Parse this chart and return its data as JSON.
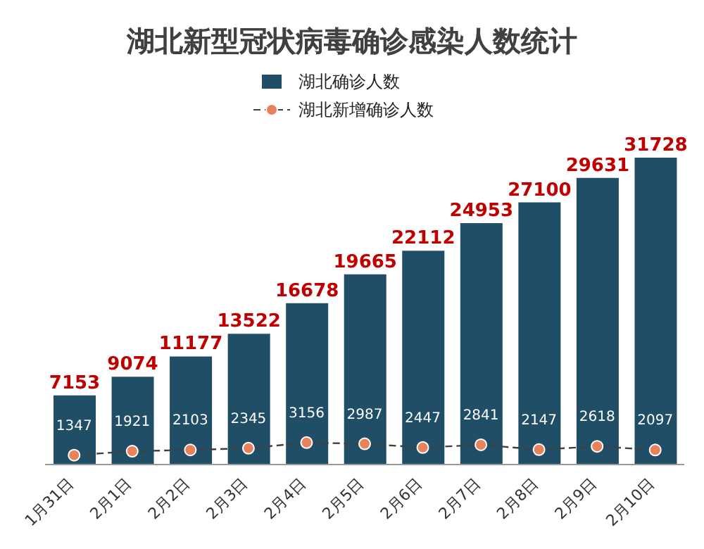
{
  "chart_data": {
    "type": "bar",
    "title": "湖北新型冠状病毒确诊感染人数统计",
    "categories": [
      "1月31日",
      "2月1日",
      "2月2日",
      "2月3日",
      "2月4日",
      "2月5日",
      "2月6日",
      "2月7日",
      "2月8日",
      "2月9日",
      "2月10日"
    ],
    "series": [
      {
        "name": "湖北确诊人数",
        "color": "#1f4e66",
        "values": [
          7153,
          9074,
          11177,
          13522,
          16678,
          19665,
          22112,
          24953,
          27100,
          29631,
          31728
        ]
      },
      {
        "name": "湖北新增确诊人数",
        "type": "line",
        "axis": "y2",
        "color": "#404040",
        "values": [
          1347,
          1921,
          2103,
          2345,
          3156,
          2987,
          2447,
          2841,
          2147,
          2618,
          2097
        ]
      }
    ],
    "data_labels": true,
    "legend": "top",
    "marker": "circle",
    "line_style": "dashed"
  }
}
